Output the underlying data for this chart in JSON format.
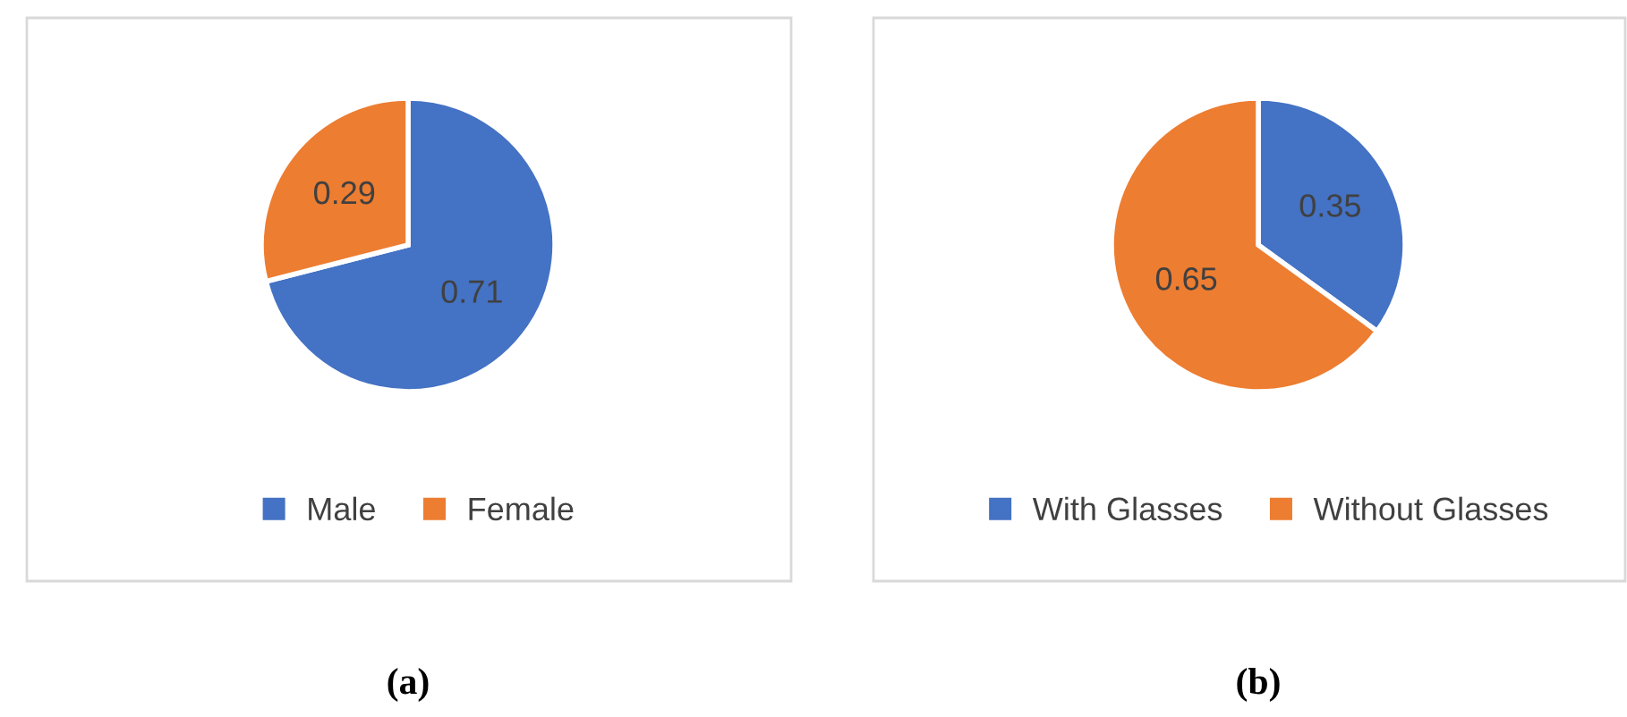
{
  "chart_data": [
    {
      "type": "pie",
      "categories": [
        "Male",
        "Female"
      ],
      "values": [
        0.71,
        0.29
      ],
      "colors": [
        "#4472c4",
        "#ed7d31"
      ],
      "data_labels": true,
      "legend": "bottom",
      "annotations": [
        "(a)"
      ]
    },
    {
      "type": "pie",
      "categories": [
        "With Glasses",
        "Without Glasses"
      ],
      "values": [
        0.35,
        0.65
      ],
      "colors": [
        "#4472c4",
        "#ed7d31"
      ],
      "data_labels": true,
      "legend": "bottom",
      "annotations": [
        "(b)"
      ]
    }
  ]
}
